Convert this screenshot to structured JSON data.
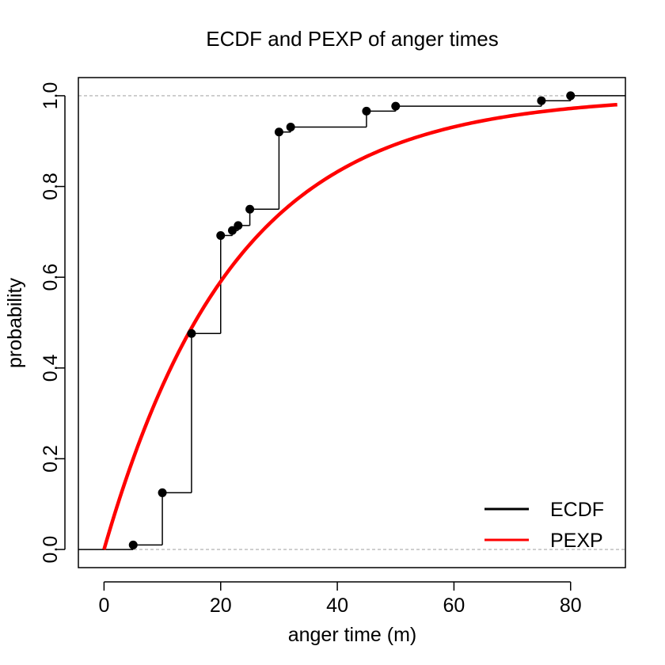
{
  "chart_data": {
    "type": "line",
    "title": "ECDF and PEXP of anger times",
    "xlabel": "anger time (m)",
    "ylabel": "probability",
    "xlim": [
      -4.4,
      89.4
    ],
    "ylim": [
      -0.04,
      1.04
    ],
    "x_ticks": [
      0,
      20,
      40,
      60,
      80
    ],
    "y_ticks": [
      0.0,
      0.2,
      0.4,
      0.6,
      0.8,
      1.0
    ],
    "x_tick_labels": [
      "0",
      "20",
      "40",
      "60",
      "80"
    ],
    "y_tick_labels": [
      "0.0",
      "0.2",
      "0.4",
      "0.6",
      "0.8",
      "1.0"
    ],
    "reference_lines": [
      0,
      1
    ],
    "legend": {
      "position": "bottom-right",
      "entries": [
        {
          "label": "ECDF",
          "color": "#000000"
        },
        {
          "label": "PEXP",
          "color": "#ff0000"
        }
      ]
    },
    "series": [
      {
        "name": "ECDF",
        "kind": "step",
        "color": "#000000",
        "points": [
          {
            "x": 5,
            "y": 0.01
          },
          {
            "x": 10,
            "y": 0.125
          },
          {
            "x": 15,
            "y": 0.476
          },
          {
            "x": 20,
            "y": 0.692
          },
          {
            "x": 22,
            "y": 0.703
          },
          {
            "x": 23,
            "y": 0.714
          },
          {
            "x": 25,
            "y": 0.75
          },
          {
            "x": 30,
            "y": 0.92
          },
          {
            "x": 32,
            "y": 0.931
          },
          {
            "x": 45,
            "y": 0.966
          },
          {
            "x": 50,
            "y": 0.977
          },
          {
            "x": 75,
            "y": 0.989
          },
          {
            "x": 80,
            "y": 1.0
          }
        ]
      },
      {
        "name": "PEXP",
        "kind": "curve",
        "color": "#ff0000",
        "x_range": [
          0,
          88
        ],
        "function": "1 - exp(-x / 22.4)"
      }
    ]
  }
}
